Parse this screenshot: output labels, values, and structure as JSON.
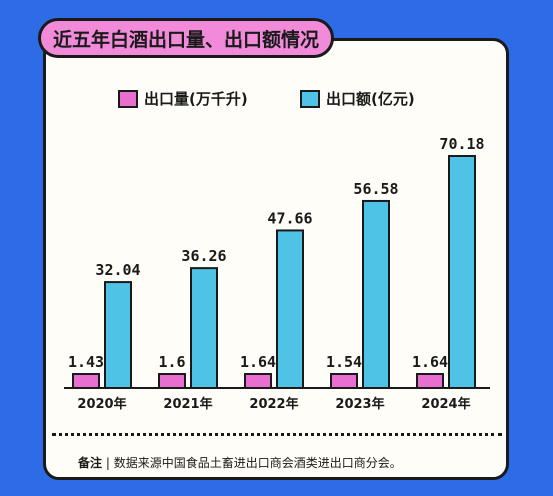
{
  "title": "近五年白酒出口量、出口额情况",
  "legend": {
    "volume_label": "出口量(万千升)",
    "value_label": "出口额(亿元)"
  },
  "colors": {
    "volume": "#e86fd0",
    "value": "#4fc3e6",
    "outline": "#1a1a1a"
  },
  "chart_data": {
    "type": "bar",
    "title": "近五年白酒出口量、出口额情况",
    "categories": [
      "2020年",
      "2021年",
      "2022年",
      "2023年",
      "2024年"
    ],
    "series": [
      {
        "name": "出口量(万千升)",
        "values": [
          1.43,
          1.6,
          1.64,
          1.54,
          1.64
        ],
        "value_labels": [
          "1.43",
          "1.6",
          "1.64",
          "1.54",
          "1.64"
        ]
      },
      {
        "name": "出口额(亿元)",
        "values": [
          32.04,
          36.26,
          47.66,
          56.58,
          70.18
        ],
        "value_labels": [
          "32.04",
          "36.26",
          "47.66",
          "56.58",
          "70.18"
        ]
      }
    ],
    "legend_position": "top",
    "grid": false
  },
  "footer": {
    "prefix": "备注",
    "separator": "|",
    "text": "数据来源中国食品土畜进出口商会酒类进出口商分会。"
  }
}
